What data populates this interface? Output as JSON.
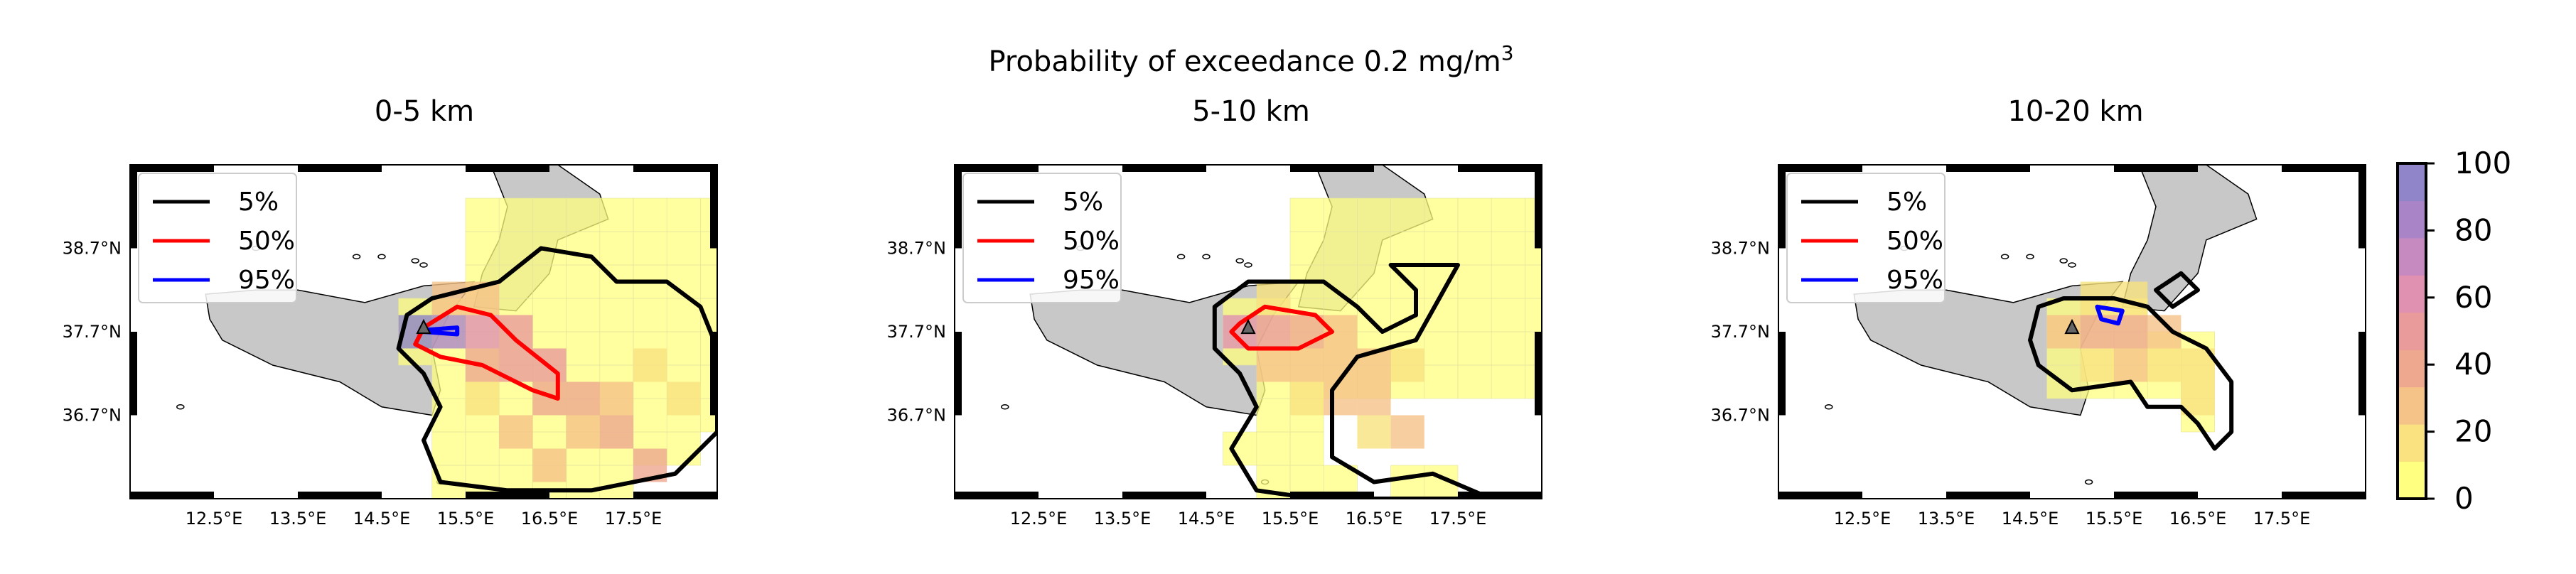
{
  "figure": {
    "suptitle_line1": "Probability of exceedance 0.2 mg/m",
    "suptitle_sup": "3"
  },
  "colors": {
    "contour_5": "#000000",
    "contour_50": "#ff0000",
    "contour_95": "#0000ff",
    "land": "#c8c8c8",
    "colormap": [
      "#ffff80",
      "#f9e27f",
      "#f5c287",
      "#eea88f",
      "#e99a9a",
      "#e090b0",
      "#c78ac0",
      "#a985c7",
      "#8f85c8"
    ]
  },
  "colorbar": {
    "ticks": [
      "0",
      "20",
      "40",
      "60",
      "80",
      "100"
    ],
    "range": [
      0,
      100
    ]
  },
  "chart_data": [
    {
      "type": "heatmap",
      "title": "0-5 km",
      "xticks": [
        "12.5°E",
        "13.5°E",
        "14.5°E",
        "15.5°E",
        "16.5°E",
        "17.5°E"
      ],
      "yticks": [
        "38.7°N",
        "37.7°N",
        "36.7°N"
      ],
      "xlim": [
        11.5,
        18.5
      ],
      "ylim": [
        35.7,
        39.7
      ],
      "grid_step": 0.4,
      "vent": {
        "lon": 15.0,
        "lat": 37.75,
        "marker": "triangle"
      },
      "legend": [
        {
          "label": "5%",
          "color": "#000000"
        },
        {
          "label": "50%",
          "color": "#ff0000"
        },
        {
          "label": "95%",
          "color": "#0000ff"
        }
      ],
      "contours": {
        "5": [
          [
            15.1,
            38.1
          ],
          [
            15.9,
            38.3
          ],
          [
            16.4,
            38.7
          ],
          [
            17.0,
            38.6
          ],
          [
            17.3,
            38.3
          ],
          [
            17.9,
            38.3
          ],
          [
            18.3,
            38.0
          ],
          [
            18.5,
            37.5
          ],
          [
            18.5,
            36.5
          ],
          [
            18.0,
            36.0
          ],
          [
            17.0,
            35.8
          ],
          [
            16.0,
            35.8
          ],
          [
            15.2,
            35.9
          ],
          [
            15.0,
            36.4
          ],
          [
            15.2,
            36.8
          ],
          [
            15.0,
            37.2
          ],
          [
            14.7,
            37.5
          ],
          [
            14.8,
            37.9
          ]
        ],
        "50": [
          [
            15.0,
            37.75
          ],
          [
            15.4,
            38.0
          ],
          [
            15.8,
            37.9
          ],
          [
            16.1,
            37.6
          ],
          [
            16.6,
            37.2
          ],
          [
            16.6,
            36.9
          ],
          [
            16.3,
            37.0
          ],
          [
            15.7,
            37.3
          ],
          [
            15.2,
            37.4
          ],
          [
            14.9,
            37.55
          ]
        ],
        "95": [
          [
            15.0,
            37.72
          ],
          [
            15.4,
            37.75
          ],
          [
            15.4,
            37.67
          ],
          [
            15.0,
            37.7
          ]
        ]
      },
      "probability_cells": [
        {
          "lon": 14.9,
          "lat": 37.7,
          "p": 90
        },
        {
          "lon": 15.3,
          "lat": 37.7,
          "p": 80
        },
        {
          "lon": 15.7,
          "lat": 37.7,
          "p": 60
        },
        {
          "lon": 16.1,
          "lat": 37.7,
          "p": 45
        },
        {
          "lon": 15.3,
          "lat": 38.1,
          "p": 30
        },
        {
          "lon": 15.7,
          "lat": 38.1,
          "p": 25
        },
        {
          "lon": 15.7,
          "lat": 37.3,
          "p": 40
        },
        {
          "lon": 16.1,
          "lat": 37.3,
          "p": 50
        },
        {
          "lon": 16.5,
          "lat": 37.3,
          "p": 45
        },
        {
          "lon": 16.5,
          "lat": 36.9,
          "p": 40
        },
        {
          "lon": 16.9,
          "lat": 36.9,
          "p": 35
        },
        {
          "lon": 17.3,
          "lat": 36.5,
          "p": 35
        },
        {
          "lon": 17.7,
          "lat": 36.1,
          "p": 40
        },
        {
          "lon": 16.9,
          "lat": 36.5,
          "p": 30
        },
        {
          "lon": 16.5,
          "lat": 36.1,
          "p": 30
        },
        {
          "lon": 16.1,
          "lat": 36.5,
          "p": 25
        },
        {
          "lon": 17.3,
          "lat": 36.9,
          "p": 25
        },
        {
          "lon": 17.7,
          "lat": 37.3,
          "p": 20
        },
        {
          "lon": 18.1,
          "lat": 36.9,
          "p": 20
        },
        {
          "lon": 15.7,
          "lat": 36.9,
          "p": 20
        }
      ]
    },
    {
      "type": "heatmap",
      "title": "5-10 km",
      "xticks": [
        "12.5°E",
        "13.5°E",
        "14.5°E",
        "15.5°E",
        "16.5°E",
        "17.5°E"
      ],
      "yticks": [
        "38.7°N",
        "37.7°N",
        "36.7°N"
      ],
      "xlim": [
        11.5,
        18.5
      ],
      "ylim": [
        35.7,
        39.7
      ],
      "grid_step": 0.4,
      "vent": {
        "lon": 15.0,
        "lat": 37.75,
        "marker": "triangle"
      },
      "legend": [
        {
          "label": "5%",
          "color": "#000000"
        },
        {
          "label": "50%",
          "color": "#ff0000"
        },
        {
          "label": "95%",
          "color": "#0000ff"
        }
      ],
      "contours": {
        "5": [
          [
            14.6,
            38.0
          ],
          [
            15.0,
            38.3
          ],
          [
            15.9,
            38.3
          ],
          [
            16.3,
            38.0
          ],
          [
            16.6,
            37.7
          ],
          [
            17.0,
            37.9
          ],
          [
            17.0,
            38.2
          ],
          [
            16.7,
            38.5
          ],
          [
            17.5,
            38.5
          ],
          [
            17.0,
            37.6
          ],
          [
            16.3,
            37.4
          ],
          [
            16.0,
            37.0
          ],
          [
            16.0,
            36.2
          ],
          [
            16.5,
            35.9
          ],
          [
            17.2,
            36.0
          ],
          [
            17.9,
            35.7
          ],
          [
            15.8,
            35.7
          ],
          [
            15.1,
            35.8
          ],
          [
            14.8,
            36.3
          ],
          [
            15.1,
            36.8
          ],
          [
            14.9,
            37.2
          ],
          [
            14.6,
            37.5
          ]
        ],
        "50": [
          [
            14.9,
            37.8
          ],
          [
            15.2,
            38.0
          ],
          [
            15.8,
            37.9
          ],
          [
            16.0,
            37.7
          ],
          [
            15.6,
            37.5
          ],
          [
            15.0,
            37.5
          ],
          [
            14.8,
            37.7
          ]
        ],
        "95": []
      },
      "probability_cells": [
        {
          "lon": 14.9,
          "lat": 37.7,
          "p": 60
        },
        {
          "lon": 15.3,
          "lat": 37.7,
          "p": 55
        },
        {
          "lon": 15.7,
          "lat": 37.7,
          "p": 40
        },
        {
          "lon": 16.1,
          "lat": 37.7,
          "p": 30
        },
        {
          "lon": 15.3,
          "lat": 37.3,
          "p": 30
        },
        {
          "lon": 15.7,
          "lat": 37.3,
          "p": 30
        },
        {
          "lon": 16.1,
          "lat": 37.3,
          "p": 25
        },
        {
          "lon": 16.5,
          "lat": 37.3,
          "p": 25
        },
        {
          "lon": 16.1,
          "lat": 36.9,
          "p": 25
        },
        {
          "lon": 16.5,
          "lat": 36.9,
          "p": 30
        },
        {
          "lon": 16.9,
          "lat": 36.5,
          "p": 25
        },
        {
          "lon": 16.5,
          "lat": 36.5,
          "p": 20
        },
        {
          "lon": 15.7,
          "lat": 36.9,
          "p": 20
        },
        {
          "lon": 15.3,
          "lat": 38.1,
          "p": 20
        },
        {
          "lon": 16.9,
          "lat": 37.3,
          "p": 15
        }
      ]
    },
    {
      "type": "heatmap",
      "title": "10-20 km",
      "xticks": [
        "12.5°E",
        "13.5°E",
        "14.5°E",
        "15.5°E",
        "16.5°E",
        "17.5°E"
      ],
      "yticks": [
        "38.7°N",
        "37.7°N",
        "36.7°N"
      ],
      "xlim": [
        11.5,
        18.5
      ],
      "ylim": [
        35.7,
        39.7
      ],
      "grid_step": 0.4,
      "vent": {
        "lon": 15.0,
        "lat": 37.75,
        "marker": "triangle"
      },
      "legend": [
        {
          "label": "5%",
          "color": "#000000"
        },
        {
          "label": "50%",
          "color": "#ff0000"
        },
        {
          "label": "95%",
          "color": "#0000ff"
        }
      ],
      "contours": {
        "5": [
          [
            14.6,
            38.0
          ],
          [
            14.9,
            38.1
          ],
          [
            15.5,
            38.1
          ],
          [
            15.9,
            38.0
          ],
          [
            16.2,
            37.7
          ],
          [
            16.6,
            37.5
          ],
          [
            16.9,
            37.1
          ],
          [
            16.9,
            36.5
          ],
          [
            16.7,
            36.3
          ],
          [
            16.5,
            36.6
          ],
          [
            16.3,
            36.8
          ],
          [
            15.9,
            36.8
          ],
          [
            15.7,
            37.1
          ],
          [
            15.0,
            37.0
          ],
          [
            14.6,
            37.3
          ],
          [
            14.5,
            37.6
          ]
        ],
        "5_island": [
          [
            16.0,
            38.2
          ],
          [
            16.3,
            38.4
          ],
          [
            16.5,
            38.2
          ],
          [
            16.2,
            38.0
          ]
        ],
        "50": [],
        "95": [
          [
            15.3,
            38.0
          ],
          [
            15.6,
            37.95
          ],
          [
            15.55,
            37.8
          ],
          [
            15.35,
            37.85
          ]
        ]
      },
      "probability_cells": [
        {
          "lon": 14.9,
          "lat": 37.7,
          "p": 30
        },
        {
          "lon": 15.3,
          "lat": 37.7,
          "p": 40
        },
        {
          "lon": 15.7,
          "lat": 37.7,
          "p": 35
        },
        {
          "lon": 15.3,
          "lat": 38.1,
          "p": 20
        },
        {
          "lon": 15.7,
          "lat": 38.1,
          "p": 20
        },
        {
          "lon": 16.1,
          "lat": 37.7,
          "p": 25
        },
        {
          "lon": 15.7,
          "lat": 37.3,
          "p": 25
        },
        {
          "lon": 16.1,
          "lat": 37.3,
          "p": 20
        },
        {
          "lon": 16.5,
          "lat": 37.3,
          "p": 15
        },
        {
          "lon": 16.5,
          "lat": 36.9,
          "p": 15
        },
        {
          "lon": 15.3,
          "lat": 37.3,
          "p": 20
        }
      ]
    }
  ]
}
